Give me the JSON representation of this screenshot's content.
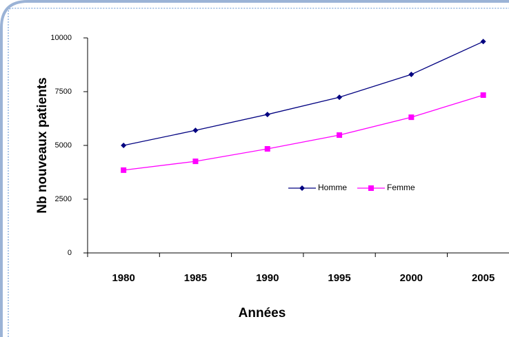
{
  "chart_data": {
    "type": "line",
    "xlabel": "Années",
    "ylabel": "Nb nouveaux patients",
    "categories": [
      "1980",
      "1985",
      "1990",
      "1995",
      "2000",
      "2005"
    ],
    "series": [
      {
        "name": "Homme",
        "color": "#000080",
        "marker": "diamond",
        "values": [
          5000,
          5700,
          6440,
          7240,
          8300,
          9830
        ]
      },
      {
        "name": "Femme",
        "color": "#ff00ff",
        "marker": "square",
        "values": [
          3850,
          4260,
          4840,
          5480,
          6310,
          7340
        ]
      }
    ],
    "ylim": [
      0,
      10000
    ],
    "yticks": [
      0,
      2500,
      5000,
      7500,
      10000
    ],
    "grid": false,
    "legend": "right"
  }
}
